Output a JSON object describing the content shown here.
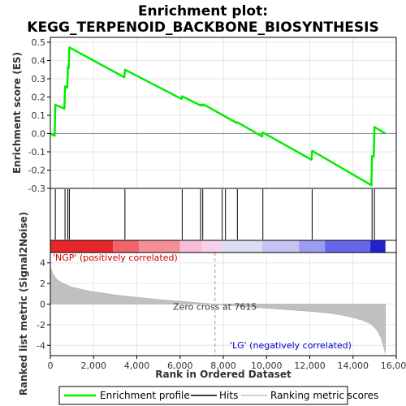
{
  "chart_data": [
    {
      "type": "line",
      "title": "Enrichment plot:\nKEGG_TERPENOID_BACKBONE_BIOSYNTHESIS",
      "title_lines": [
        "Enrichment plot:",
        "KEGG_TERPENOID_BACKBONE_BIOSYNTHESIS"
      ],
      "ylabel": "Enrichment score (ES)",
      "xlim": [
        0,
        16000
      ],
      "ylim": [
        -0.3,
        0.5
      ],
      "y_ticks": [
        "0.5",
        "0.4",
        "0.3",
        "0.2",
        "0.1",
        "0.0",
        "-0.1",
        "-0.2",
        "-0.3"
      ],
      "grid": true,
      "series": [
        {
          "name": "Enrichment profile",
          "color": "#00ee00",
          "x": [
            0,
            200,
            230,
            650,
            680,
            780,
            810,
            850,
            880,
            3420,
            3450,
            6070,
            6100,
            6950,
            6980,
            7050,
            7080,
            8620,
            8650,
            9800,
            9830,
            12080,
            12110,
            14850,
            14880,
            14960,
            14990,
            15500
          ],
          "y": [
            0.0,
            -0.012,
            0.158,
            0.136,
            0.258,
            0.252,
            0.365,
            0.358,
            0.472,
            0.308,
            0.35,
            0.19,
            0.204,
            0.154,
            0.158,
            0.154,
            0.16,
            0.058,
            0.062,
            -0.016,
            0.006,
            -0.143,
            -0.094,
            -0.283,
            -0.123,
            -0.126,
            0.036,
            0.0
          ]
        }
      ]
    },
    {
      "type": "hits",
      "legend_label": "Hits",
      "hit_ranks": [
        230,
        680,
        810,
        880,
        3450,
        6100,
        6950,
        7050,
        7950,
        8100,
        8650,
        9830,
        12110,
        14880,
        14990
      ]
    },
    {
      "type": "heatmap",
      "description_bar": "rank colour strip",
      "segments": [
        {
          "to": 2900,
          "color": "#e8262a"
        },
        {
          "to": 4100,
          "color": "#f0646c"
        },
        {
          "to": 6000,
          "color": "#f58e96"
        },
        {
          "to": 7000,
          "color": "#f7bcd8"
        },
        {
          "to": 7900,
          "color": "#f6d0ea"
        },
        {
          "to": 9800,
          "color": "#dcdcf2"
        },
        {
          "to": 11500,
          "color": "#c4c4f4"
        },
        {
          "to": 12700,
          "color": "#9c9cf2"
        },
        {
          "to": 14800,
          "color": "#6666ea"
        },
        {
          "to": 15500,
          "color": "#2222cc"
        }
      ]
    },
    {
      "type": "area",
      "ylabel": "Ranked list metric (Signal2Noise)",
      "xlabel": "Rank in Ordered Dataset",
      "xlim": [
        0,
        16000
      ],
      "ylim": [
        -5,
        5
      ],
      "x_ticks": [
        "0",
        "2,000",
        "4,000",
        "6,000",
        "8,000",
        "10,000",
        "12,000",
        "14,000",
        "16,000"
      ],
      "y_ticks": [
        "4",
        "2",
        "0",
        "-2",
        "-4"
      ],
      "zero_cross_label": "Zero cross at 7615",
      "zero_cross_rank": 7615,
      "annotation_pos": "'NGP' (positively correlated)",
      "annotation_neg": "'LG' (negatively correlated)",
      "pos_color": "#cc0000",
      "neg_color": "#0000cc",
      "series": [
        {
          "name": "Ranking metric scores",
          "x": [
            0,
            100,
            300,
            600,
            1000,
            1500,
            2000,
            3000,
            4000,
            5000,
            6000,
            7000,
            7615,
            8000,
            9000,
            10000,
            11000,
            12000,
            13000,
            13800,
            14400,
            14800,
            15100,
            15300,
            15450,
            15500
          ],
          "y": [
            3.6,
            3.0,
            2.4,
            2.0,
            1.65,
            1.4,
            1.2,
            0.9,
            0.65,
            0.45,
            0.28,
            0.1,
            0.0,
            -0.08,
            -0.25,
            -0.4,
            -0.55,
            -0.7,
            -0.9,
            -1.2,
            -1.55,
            -1.9,
            -2.5,
            -3.3,
            -4.4,
            -4.8
          ]
        }
      ]
    }
  ],
  "legend": {
    "items": [
      {
        "label": "Enrichment profile",
        "color": "#00ee00"
      },
      {
        "label": "Hits",
        "color": "#000000"
      },
      {
        "label": "Ranking metric scores",
        "color": "#c0c0c0"
      }
    ]
  }
}
